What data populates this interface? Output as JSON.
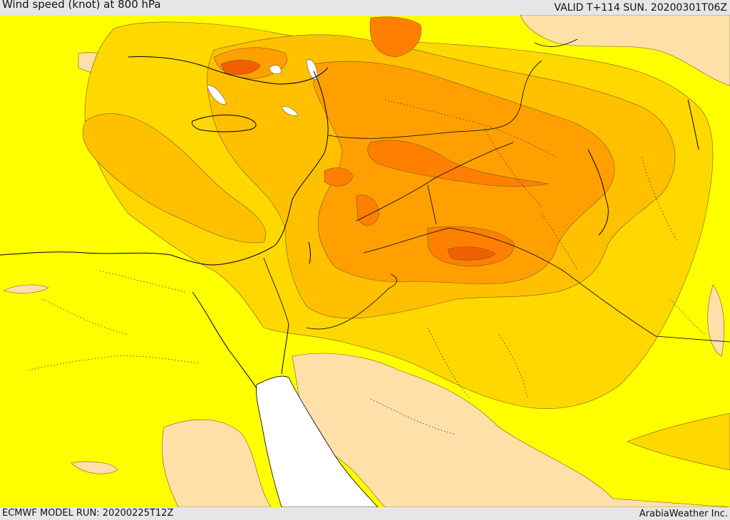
{
  "header": {
    "title": "Wind speed (knot) at 800 hPa",
    "valid": "VALID T+114 SUN. 20200301T06Z"
  },
  "footer": {
    "model_run": "ECMWF MODEL RUN: 20200225T12Z",
    "credit": "ArabiaWeather Inc."
  },
  "colors": {
    "band_light": "#ffe0a8",
    "band_yellow": "#ffff00",
    "band_gold": "#ffd800",
    "band_amber": "#ffc000",
    "band_orange": "#ffa000",
    "band_deep": "#ff8000",
    "band_red": "#f06000",
    "sea_white": "#ffffff",
    "bar_grey": "#e6e6e6"
  }
}
